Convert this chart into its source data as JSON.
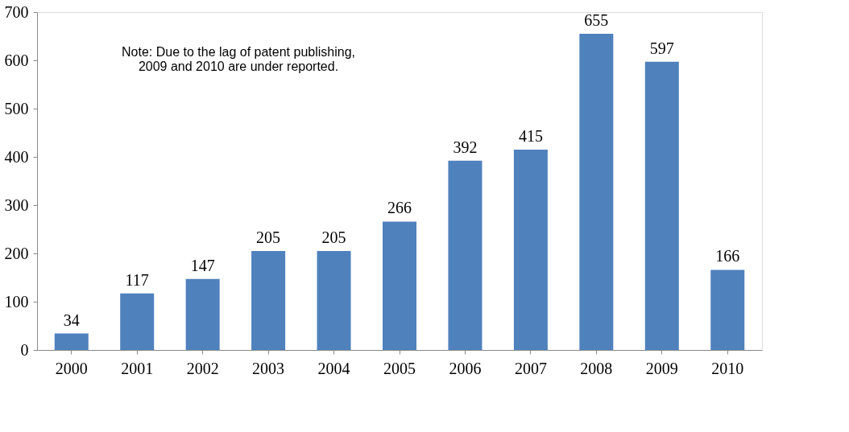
{
  "chart_data": {
    "type": "bar",
    "categories": [
      "2000",
      "2001",
      "2002",
      "2003",
      "2004",
      "2005",
      "2006",
      "2007",
      "2008",
      "2009",
      "2010"
    ],
    "values": [
      34,
      117,
      147,
      205,
      205,
      266,
      392,
      415,
      655,
      597,
      166
    ],
    "color": "#4f81bd",
    "ylim": [
      0,
      700
    ],
    "yticks": [
      0,
      100,
      200,
      300,
      400,
      500,
      600,
      700
    ],
    "grid": false,
    "data_labels": true,
    "annotations": [
      "Note: Due to the lag of patent publishing,\n2009 and 2010 are under reported."
    ]
  }
}
